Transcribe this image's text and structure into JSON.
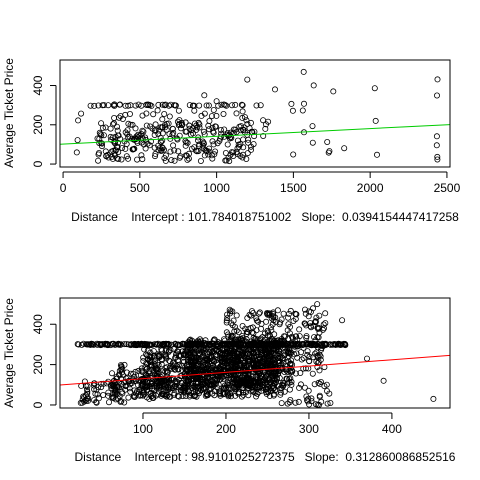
{
  "chart_data": [
    {
      "type": "scatter",
      "xlabel": "Distance    Intercept : 101.784018751002   Slope:  0.0394154447417258",
      "ylabel": "Average Ticket Price",
      "xlim": [
        -20,
        2520
      ],
      "ylim": [
        -15,
        530
      ],
      "x_ticks": [
        0,
        500,
        1000,
        1500,
        2000,
        2500
      ],
      "y_ticks": [
        0,
        200,
        400
      ],
      "x_tick_labels": [
        "0",
        "500",
        "1000",
        "1500",
        "2000",
        "2500"
      ],
      "y_tick_labels": [
        "0",
        "200",
        "400"
      ],
      "grid": false,
      "regression_line": {
        "color": "#00cc00",
        "intercept": 101.784018751002,
        "slope": 0.0394154447417258,
        "x_range": [
          -20,
          2520
        ]
      },
      "points": {
        "color": "#000000",
        "marker": "open-circle",
        "bands": [
          {
            "x": [
              120,
              1320
            ],
            "y": [
              300,
              300
            ],
            "step": 8
          },
          {
            "x": [
              220,
              1250
            ],
            "y": [
              15,
              210
            ],
            "step": 5
          },
          {
            "x": [
              300,
              1200
            ],
            "y": [
              60,
              280
            ],
            "step": 9
          },
          {
            "x": [
              80,
              120
            ],
            "y": [
              0,
              300
            ],
            "step": 10
          },
          {
            "x": [
              1280,
              1340
            ],
            "y": [
              30,
              300
            ],
            "step": 10
          },
          {
            "x": [
              1480,
              1500
            ],
            "y": [
              10,
              430
            ],
            "step": 9
          },
          {
            "x": [
              1560,
              1580
            ],
            "y": [
              20,
              480
            ],
            "step": 8
          },
          {
            "x": [
              1620,
              1640
            ],
            "y": [
              30,
              470
            ],
            "step": 9
          },
          {
            "x": [
              1720,
              1740
            ],
            "y": [
              10,
              440
            ],
            "step": 9
          },
          {
            "x": [
              1820,
              1840
            ],
            "y": [
              40,
              300
            ],
            "step": 11
          },
          {
            "x": [
              2030,
              2050
            ],
            "y": [
              5,
              400
            ],
            "step": 9
          },
          {
            "x": [
              2420,
              2440
            ],
            "y": [
              0,
              500
            ],
            "step": 7
          }
        ],
        "singles": [
          {
            "x": 1200,
            "y": 430
          },
          {
            "x": 920,
            "y": 350
          },
          {
            "x": 1000,
            "y": 320
          },
          {
            "x": 1100,
            "y": 300
          },
          {
            "x": 1380,
            "y": 380
          },
          {
            "x": 1760,
            "y": 370
          }
        ]
      }
    },
    {
      "type": "scatter",
      "xlabel": "Distance    Intercept : 98.9101025272375   Slope:  0.312860086852516",
      "ylabel": "Average Ticket Price",
      "xlim": [
        0,
        470
      ],
      "ylim": [
        -15,
        530
      ],
      "x_ticks": [
        100,
        200,
        300,
        400
      ],
      "y_ticks": [
        0,
        200,
        400
      ],
      "x_tick_labels": [
        "100",
        "200",
        "300",
        "400"
      ],
      "y_tick_labels": [
        "0",
        "200",
        "400"
      ],
      "grid": false,
      "regression_line": {
        "color": "#ff0000",
        "intercept": 98.9101025272375,
        "slope": 0.312860086852516,
        "x_range": [
          0,
          470
        ]
      },
      "points": {
        "color": "#000000",
        "marker": "open-circle",
        "bands": [
          {
            "x": [
              15,
              345
            ],
            "y": [
              300,
              300
            ],
            "step": 2
          },
          {
            "x": [
              25,
              80
            ],
            "y": [
              10,
              120
            ],
            "step": 4
          },
          {
            "x": [
              60,
              130
            ],
            "y": [
              30,
              200
            ],
            "step": 4
          },
          {
            "x": [
              100,
              260
            ],
            "y": [
              40,
              280
            ],
            "step": 3
          },
          {
            "x": [
              150,
              280
            ],
            "y": [
              80,
              330
            ],
            "step": 3
          },
          {
            "x": [
              200,
              320
            ],
            "y": [
              150,
              480
            ],
            "step": 5
          },
          {
            "x": [
              260,
              330
            ],
            "y": [
              0,
              120
            ],
            "step": 6
          }
        ],
        "singles": [
          {
            "x": 390,
            "y": 120
          },
          {
            "x": 450,
            "y": 30
          },
          {
            "x": 370,
            "y": 230
          },
          {
            "x": 310,
            "y": 500
          },
          {
            "x": 340,
            "y": 420
          }
        ]
      }
    }
  ]
}
